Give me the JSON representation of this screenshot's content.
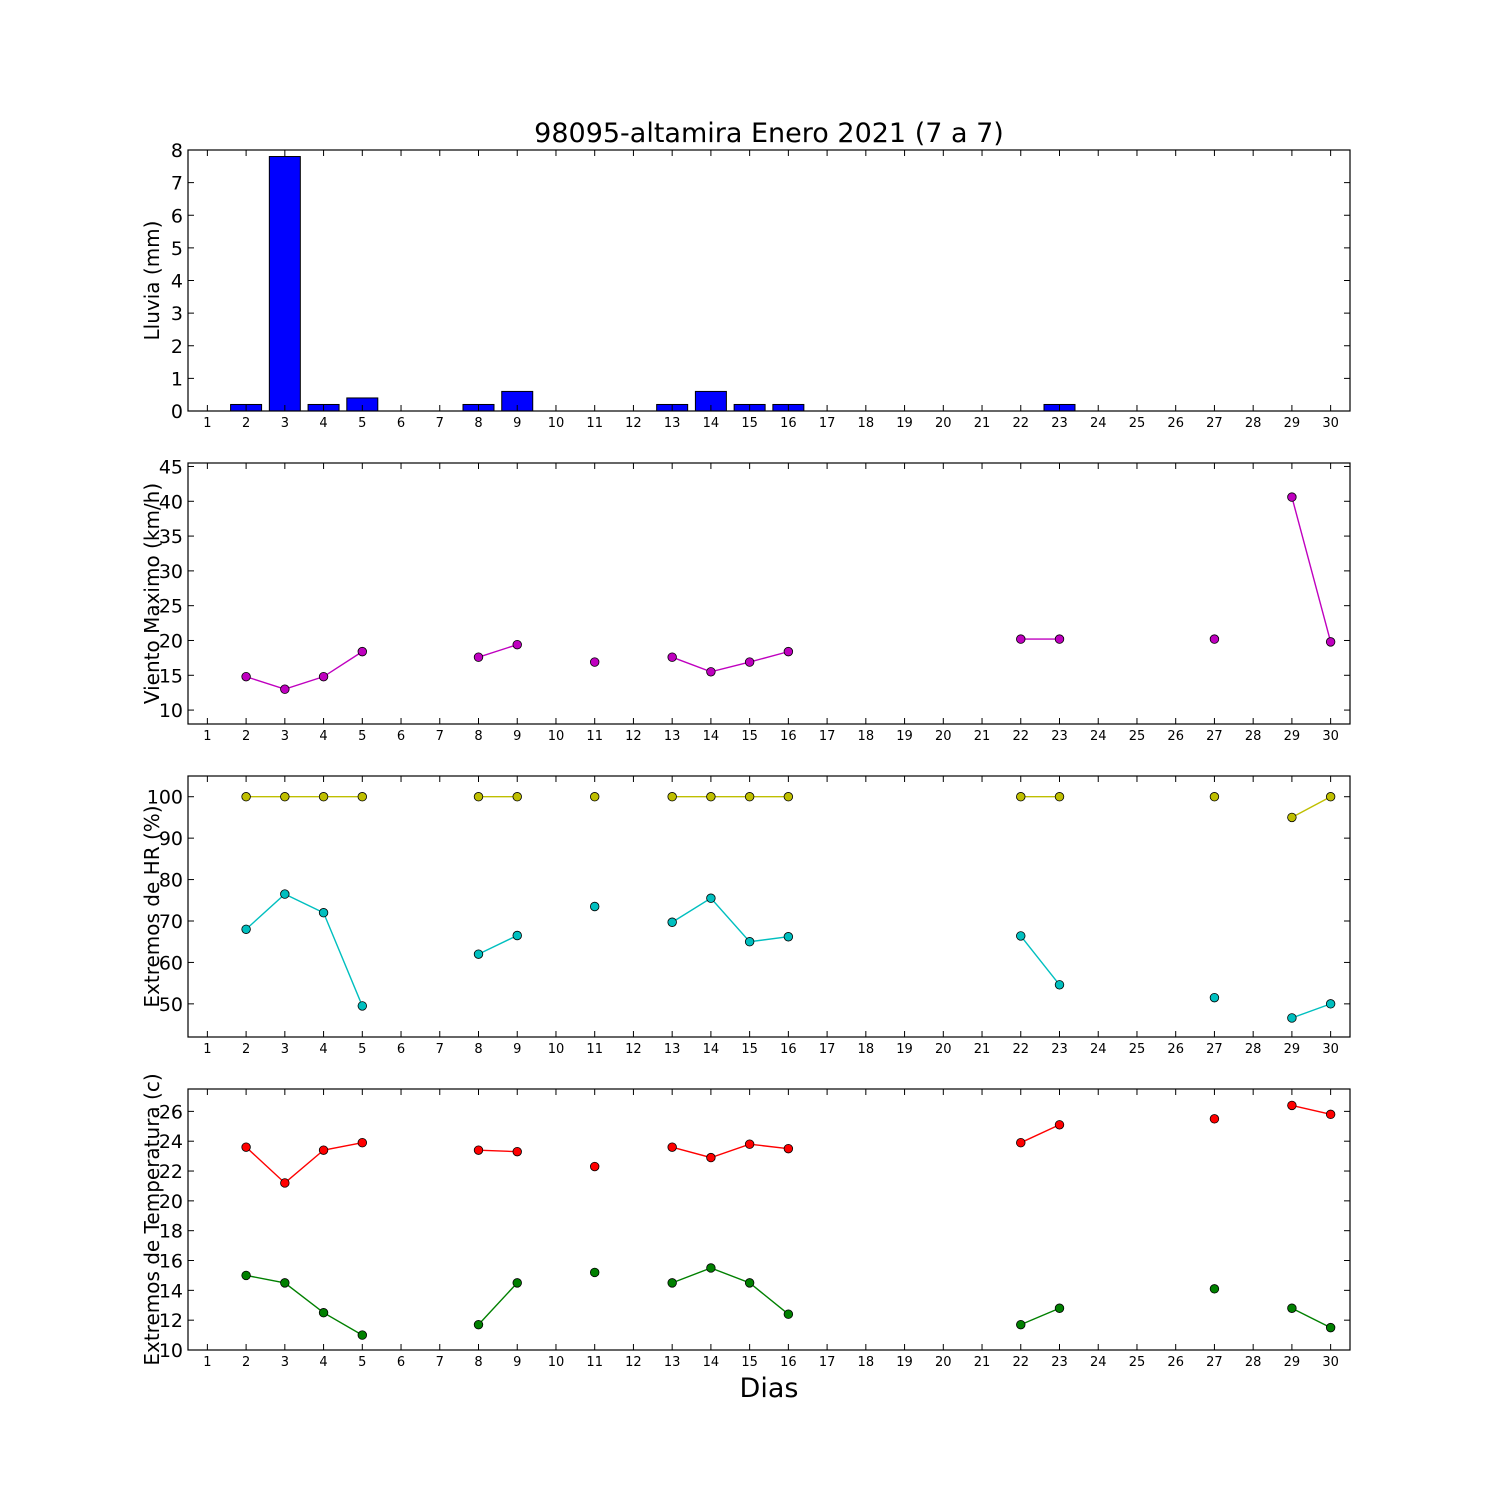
{
  "figure": {
    "title": "98095-altamira Enero 2021  (7 a 7)",
    "xlabel": "Dias"
  },
  "chart_data": [
    {
      "type": "bar",
      "ylabel": "Lluvia (mm)",
      "ylim": [
        0,
        8
      ],
      "yticks": [
        0,
        1,
        2,
        3,
        4,
        5,
        6,
        7,
        8
      ],
      "xlim": [
        0.5,
        30.5
      ],
      "x": [
        1,
        2,
        3,
        4,
        5,
        6,
        7,
        8,
        9,
        10,
        11,
        12,
        13,
        14,
        15,
        16,
        17,
        18,
        19,
        20,
        21,
        22,
        23,
        24,
        25,
        26,
        27,
        28,
        29,
        30
      ],
      "xticklabels": [
        "1",
        "2",
        "3",
        "4",
        "5",
        "6",
        "7",
        "8",
        "9",
        "10",
        "11",
        "12",
        "13",
        "14",
        "15",
        "16",
        "17",
        "18",
        "19",
        "20",
        "21",
        "22",
        "23",
        "24",
        "25",
        "26",
        "27",
        "28",
        "29",
        "30"
      ],
      "series": [
        {
          "color": "#0000ff",
          "values": [
            null,
            0.2,
            7.8,
            0.2,
            0.4,
            null,
            null,
            0.2,
            0.6,
            null,
            0,
            null,
            0.2,
            0.6,
            0.2,
            0.2,
            0,
            0,
            0,
            0,
            0,
            0,
            0.2,
            0,
            0,
            0,
            0,
            0,
            0,
            0
          ]
        }
      ]
    },
    {
      "type": "line",
      "ylabel": "Viento Maximo (km/h)",
      "ylim": [
        8,
        45.5
      ],
      "yticks": [
        10,
        15,
        20,
        25,
        30,
        35,
        40,
        45
      ],
      "xlim": [
        0.5,
        30.5
      ],
      "x": [
        1,
        2,
        3,
        4,
        5,
        6,
        7,
        8,
        9,
        10,
        11,
        12,
        13,
        14,
        15,
        16,
        17,
        18,
        19,
        20,
        21,
        22,
        23,
        24,
        25,
        26,
        27,
        28,
        29,
        30
      ],
      "xticklabels": [
        "1",
        "2",
        "3",
        "4",
        "5",
        "6",
        "7",
        "8",
        "9",
        "10",
        "11",
        "12",
        "13",
        "14",
        "15",
        "16",
        "17",
        "18",
        "19",
        "20",
        "21",
        "22",
        "23",
        "24",
        "25",
        "26",
        "27",
        "28",
        "29",
        "30"
      ],
      "series": [
        {
          "color": "#bf00bf",
          "values": [
            null,
            14.8,
            13,
            14.8,
            18.4,
            null,
            null,
            17.6,
            19.4,
            null,
            16.9,
            null,
            17.6,
            15.5,
            16.9,
            18.4,
            null,
            null,
            null,
            null,
            null,
            20.2,
            20.2,
            null,
            null,
            null,
            20.2,
            null,
            40.6,
            19.8
          ]
        }
      ]
    },
    {
      "type": "line",
      "ylabel": "Extremos de HR (%)",
      "ylim": [
        42,
        105
      ],
      "yticks": [
        50,
        60,
        70,
        80,
        90,
        100
      ],
      "xlim": [
        0.5,
        30.5
      ],
      "x": [
        1,
        2,
        3,
        4,
        5,
        6,
        7,
        8,
        9,
        10,
        11,
        12,
        13,
        14,
        15,
        16,
        17,
        18,
        19,
        20,
        21,
        22,
        23,
        24,
        25,
        26,
        27,
        28,
        29,
        30
      ],
      "xticklabels": [
        "1",
        "2",
        "3",
        "4",
        "5",
        "6",
        "7",
        "8",
        "9",
        "10",
        "11",
        "12",
        "13",
        "14",
        "15",
        "16",
        "17",
        "18",
        "19",
        "20",
        "21",
        "22",
        "23",
        "24",
        "25",
        "26",
        "27",
        "28",
        "29",
        "30"
      ],
      "series": [
        {
          "color": "#bfbf00",
          "values": [
            null,
            100,
            100,
            100,
            100,
            null,
            null,
            100,
            100,
            null,
            100,
            null,
            100,
            100,
            100,
            100,
            null,
            null,
            null,
            null,
            null,
            100,
            100,
            null,
            null,
            null,
            100,
            null,
            95,
            100
          ]
        },
        {
          "color": "#00bfbf",
          "values": [
            null,
            68,
            76.5,
            72,
            49.5,
            null,
            null,
            62,
            66.5,
            null,
            73.5,
            null,
            69.7,
            75.5,
            65,
            66.2,
            null,
            null,
            null,
            null,
            null,
            66.4,
            54.6,
            null,
            null,
            null,
            51.5,
            null,
            46.6,
            50
          ]
        }
      ]
    },
    {
      "type": "line",
      "ylabel": "Extremos de Temperatura (c)",
      "ylim": [
        10,
        27.5
      ],
      "yticks": [
        10,
        12,
        14,
        16,
        18,
        20,
        22,
        24,
        26
      ],
      "xlim": [
        0.5,
        30.5
      ],
      "x": [
        1,
        2,
        3,
        4,
        5,
        6,
        7,
        8,
        9,
        10,
        11,
        12,
        13,
        14,
        15,
        16,
        17,
        18,
        19,
        20,
        21,
        22,
        23,
        24,
        25,
        26,
        27,
        28,
        29,
        30
      ],
      "xticklabels": [
        "1",
        "2",
        "3",
        "4",
        "5",
        "6",
        "7",
        "8",
        "9",
        "10",
        "11",
        "12",
        "13",
        "14",
        "15",
        "16",
        "17",
        "18",
        "19",
        "20",
        "21",
        "22",
        "23",
        "24",
        "25",
        "26",
        "27",
        "28",
        "29",
        "30"
      ],
      "series": [
        {
          "color": "#ff0000",
          "values": [
            null,
            23.6,
            21.2,
            23.4,
            23.9,
            null,
            null,
            23.4,
            23.3,
            null,
            22.3,
            null,
            23.6,
            22.9,
            23.8,
            23.5,
            null,
            null,
            null,
            null,
            null,
            23.9,
            25.1,
            null,
            null,
            null,
            25.5,
            null,
            26.4,
            25.8
          ]
        },
        {
          "color": "#008000",
          "values": [
            null,
            15,
            14.5,
            12.5,
            11,
            null,
            null,
            11.7,
            14.5,
            null,
            15.2,
            null,
            14.5,
            15.5,
            14.5,
            12.4,
            null,
            null,
            null,
            null,
            null,
            11.7,
            12.8,
            null,
            null,
            null,
            14.1,
            null,
            12.8,
            11.5
          ]
        }
      ]
    }
  ]
}
